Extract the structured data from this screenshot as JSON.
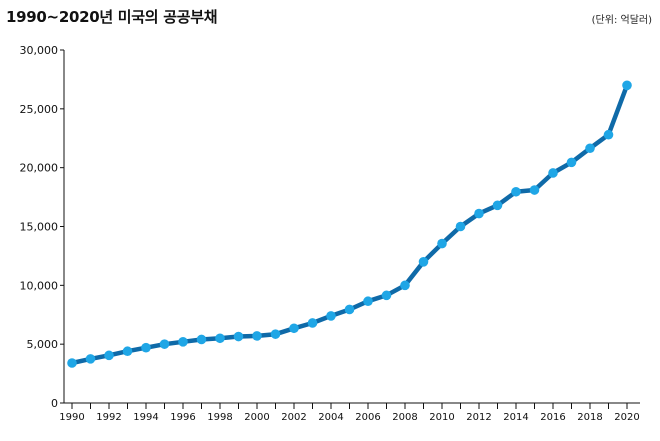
{
  "chart_data": {
    "type": "line",
    "title": "1990~2020년 미국의 공공부채",
    "unit": "(단위: 억달러)",
    "xlabel": "",
    "ylabel": "",
    "x": [
      1990,
      1991,
      1992,
      1993,
      1994,
      1995,
      1996,
      1997,
      1998,
      1999,
      2000,
      2001,
      2002,
      2003,
      2004,
      2005,
      2006,
      2007,
      2008,
      2009,
      2010,
      2011,
      2012,
      2013,
      2014,
      2015,
      2016,
      2017,
      2018,
      2019,
      2020
    ],
    "values": [
      3400,
      3750,
      4050,
      4400,
      4700,
      5000,
      5200,
      5400,
      5500,
      5650,
      5700,
      5850,
      6350,
      6800,
      7400,
      7950,
      8650,
      9150,
      10000,
      12000,
      13550,
      15000,
      16100,
      16800,
      17950,
      18100,
      19550,
      20450,
      21650,
      22800,
      27000
    ],
    "xticks": [
      "1990",
      "1992",
      "1994",
      "1996",
      "1998",
      "2000",
      "2002",
      "2004",
      "2006",
      "2008",
      "2010",
      "2012",
      "2014",
      "2016",
      "2018",
      "2020"
    ],
    "yticks": [
      "0",
      "5,000",
      "10,000",
      "15,000",
      "20,000",
      "25,000",
      "30,000"
    ],
    "ylim": [
      0,
      30000
    ],
    "xlim": [
      1990,
      2020
    ],
    "grid": false,
    "colors": {
      "line": "#0f6aa8",
      "marker": "#1fa6e6",
      "axis": "#111111"
    }
  }
}
